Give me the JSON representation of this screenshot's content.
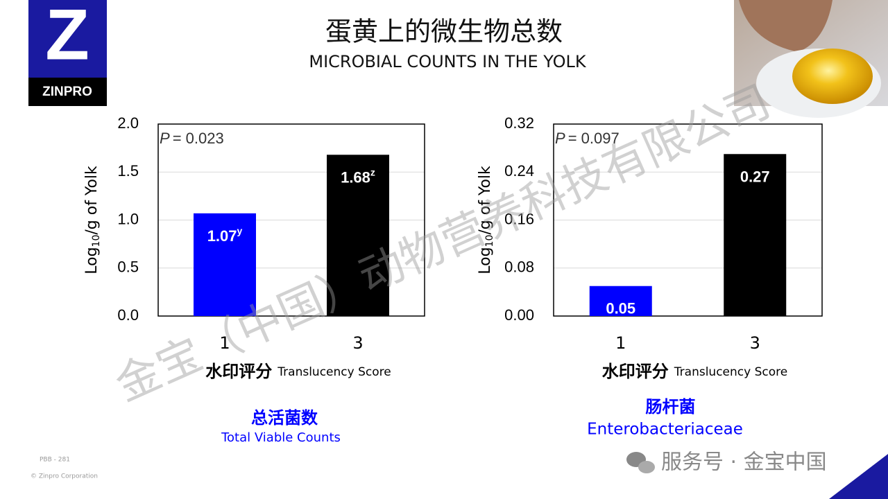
{
  "slide": {
    "title": "蛋黄上的微生物总数",
    "subtitle": "MICROBIAL COUNTS IN THE YOLK",
    "logo_letter": "Z",
    "logo_text": "ZINPRO",
    "watermark": "金宝（中国）动物营养科技有限公司",
    "footer_code": "PBB - 281",
    "footer_copyright": "© Zinpro Corporation",
    "service_tag": "服务号 · 金宝中国"
  },
  "chart_data": [
    {
      "type": "bar",
      "categories": [
        "1",
        "3"
      ],
      "values": [
        1.07,
        1.68
      ],
      "value_label_superscripts": [
        "y",
        "z"
      ],
      "colors": [
        "#0000ff",
        "#000000"
      ],
      "ylim": [
        0,
        2
      ],
      "yticks": [
        {
          "value": 0,
          "label": "0.0"
        },
        {
          "value": 0.5,
          "label": "0.5"
        },
        {
          "value": 1,
          "label": "1.0"
        },
        {
          "value": 1.5,
          "label": "1.5"
        },
        {
          "value": 2,
          "label": "2.0"
        }
      ],
      "grid": true,
      "annotation": {
        "symbol": "P",
        "text": "= 0.023"
      },
      "ylabel": {
        "base": "Log",
        "subscript": "10",
        "rest": "/g of Yolk"
      },
      "xlabel_cn": "水印评分",
      "xlabel_en": "Translucency Score",
      "caption_cn": "总活菌数",
      "caption_en": "Total Viable Counts"
    },
    {
      "type": "bar",
      "categories": [
        "1",
        "3"
      ],
      "values": [
        0.05,
        0.27
      ],
      "colors": [
        "#0000ff",
        "#000000"
      ],
      "ylim": [
        0,
        0.32
      ],
      "yticks": [
        {
          "value": 0,
          "label": "0.00"
        },
        {
          "value": 0.08,
          "label": "0.08"
        },
        {
          "value": 0.16,
          "label": "0.16"
        },
        {
          "value": 0.24,
          "label": "0.24"
        },
        {
          "value": 0.32,
          "label": "0.32"
        }
      ],
      "grid": true,
      "annotation": {
        "symbol": "P",
        "text": "= 0.097"
      },
      "ylabel": {
        "base": "Log",
        "subscript": "10",
        "rest": "/g of Yolk"
      },
      "xlabel_cn": "水印评分",
      "xlabel_en": "Translucency Score",
      "caption_cn": "肠杆菌",
      "caption_en": "Enterobacteriaceae"
    }
  ]
}
